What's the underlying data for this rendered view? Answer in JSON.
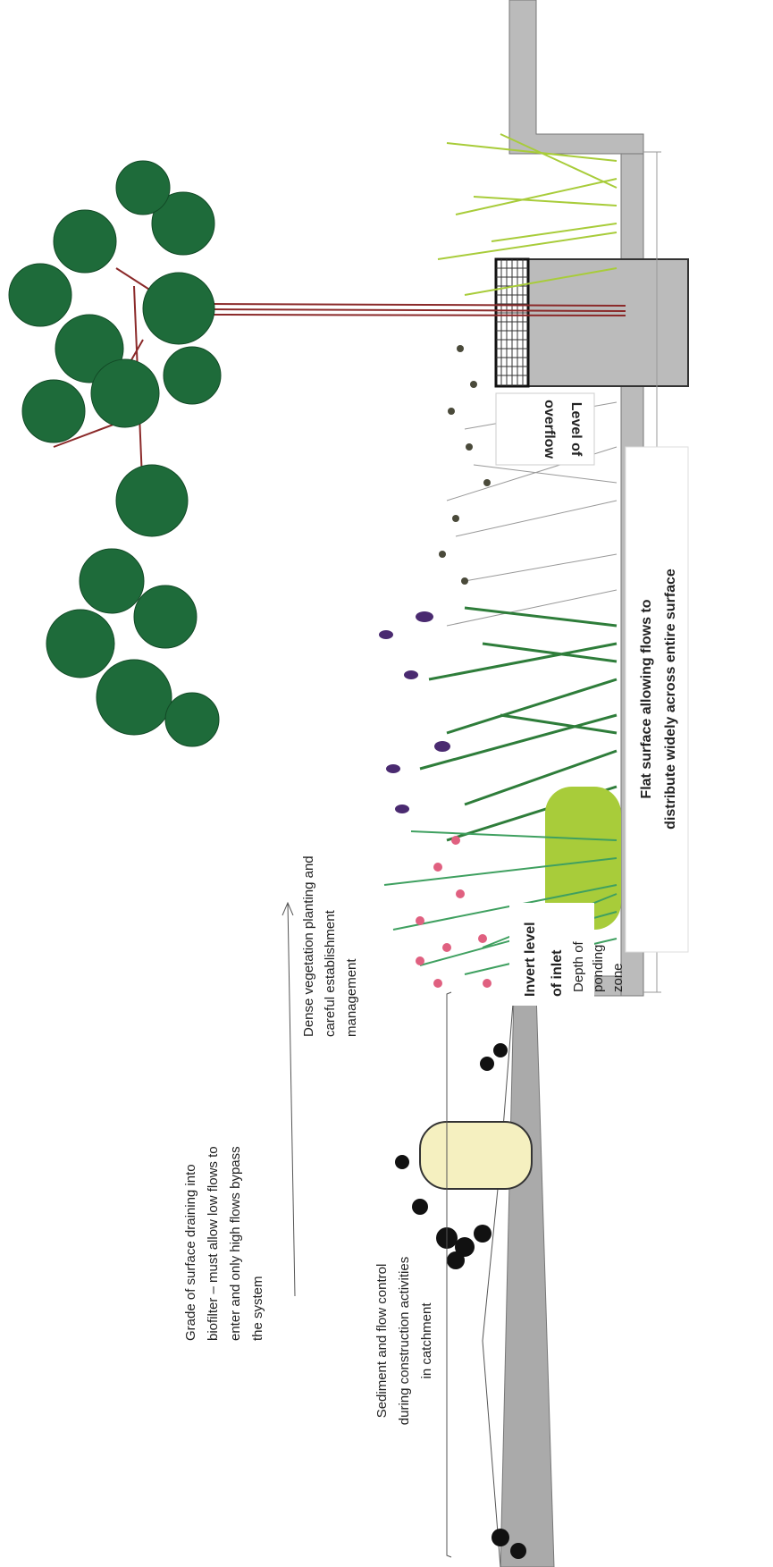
{
  "labels": [
    {
      "lines": [
        "Grade of surface draining into",
        "biofilter – must allow low flows to",
        "enter and only high flows bypass",
        "the system"
      ]
    },
    {
      "lines": [
        "Sediment and flow control",
        "during construction activities",
        "in catchment"
      ]
    },
    {
      "lines": [
        "Depth of",
        "ponding",
        "zone"
      ]
    },
    {
      "lines": [
        "Dense vegetation planting and",
        "careful establishment",
        "management"
      ]
    },
    {
      "lines": [
        "Invert level",
        "of inlet"
      ]
    },
    {
      "lines": [
        "Flat surface allowing flows to",
        "distribute widely across entire surface"
      ]
    },
    {
      "lines": [
        "Level of",
        "overflow"
      ]
    }
  ]
}
